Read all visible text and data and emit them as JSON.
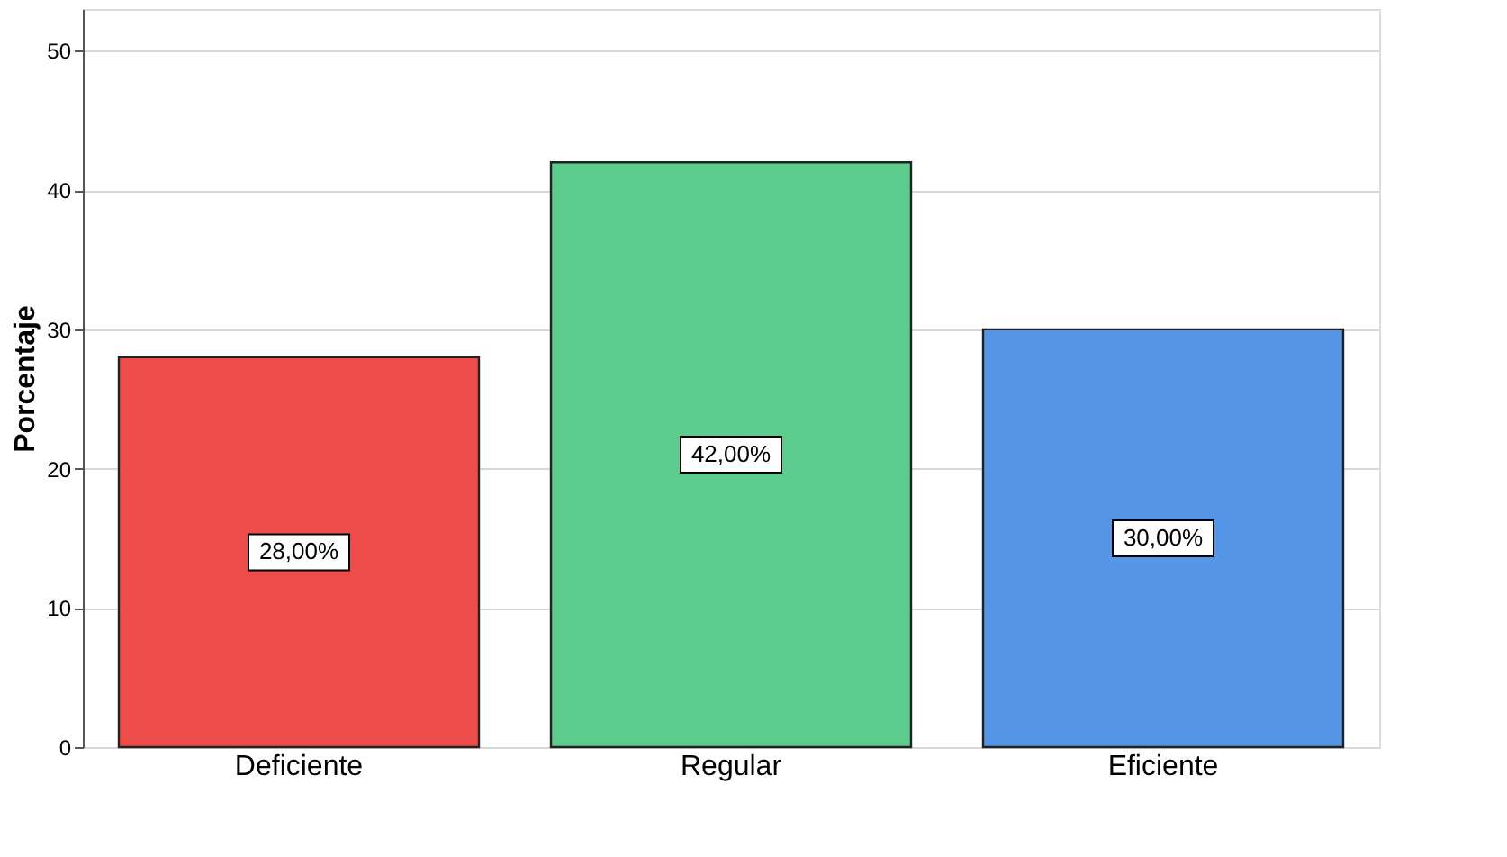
{
  "chart_data": {
    "type": "bar",
    "ylabel": "Porcentaje",
    "categories": [
      "Deficiente",
      "Regular",
      "Eficiente"
    ],
    "values": [
      28,
      42,
      30
    ],
    "colors": [
      "#ee4b4b",
      "#5ccb8b",
      "#5596e6"
    ],
    "value_labels": [
      "28,00%",
      "42,00%",
      "30,00%"
    ],
    "ylim": [
      0,
      53
    ],
    "yticks": [
      0,
      10,
      20,
      30,
      40,
      50
    ],
    "grid": "y"
  }
}
